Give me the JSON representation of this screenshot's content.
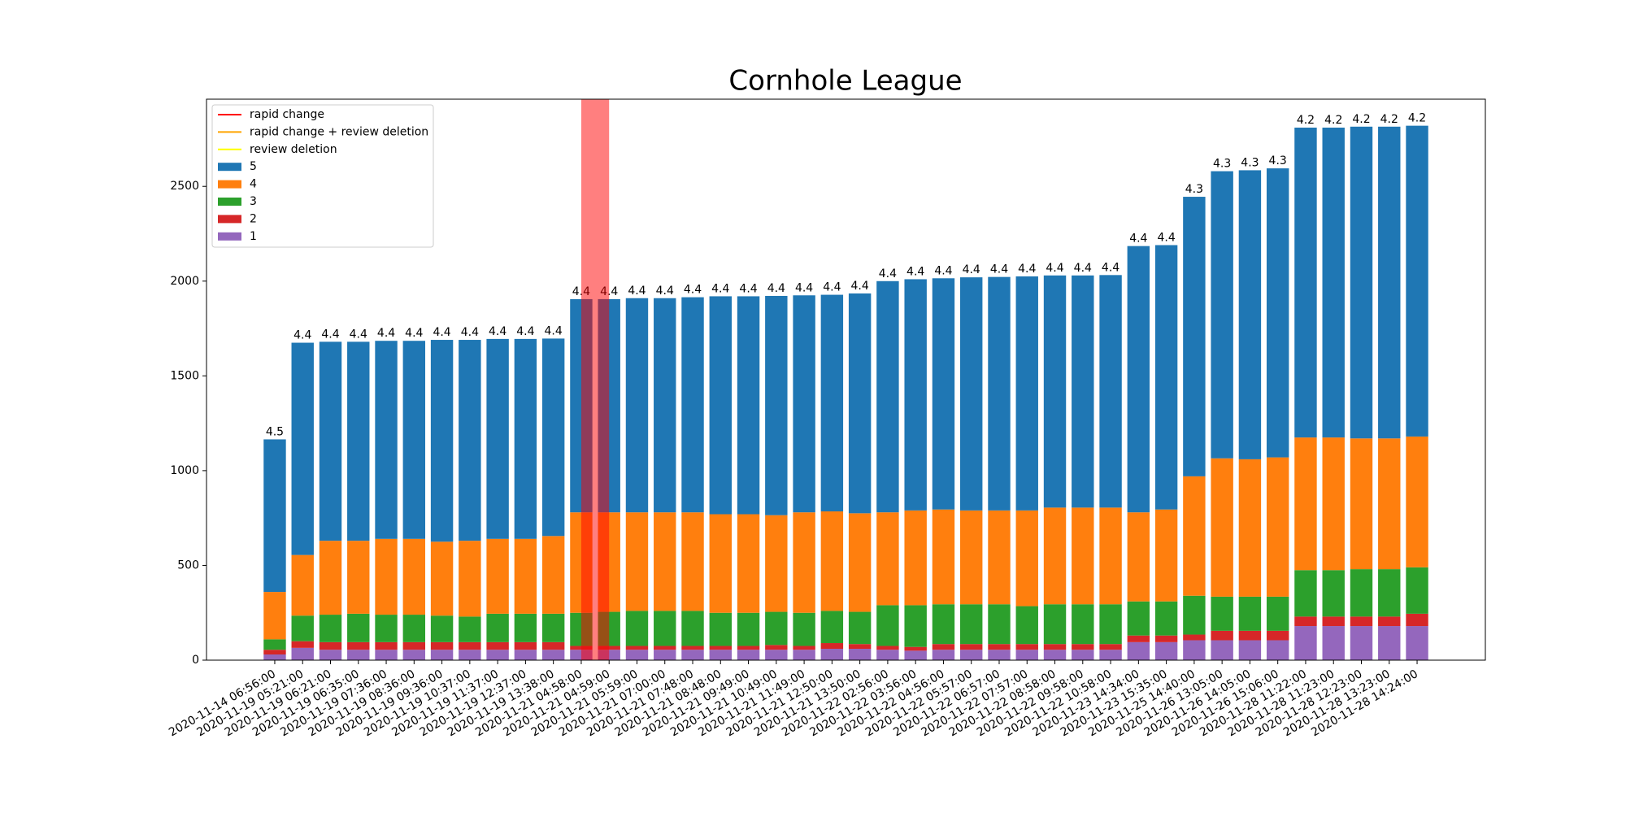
{
  "chart_data": {
    "type": "stacked-bar",
    "title": "Cornhole League",
    "categories": [
      "2020-11-14 06:56:00",
      "2020-11-19 05:21:00",
      "2020-11-19 06:21:00",
      "2020-11-19 06:35:00",
      "2020-11-19 07:36:00",
      "2020-11-19 08:36:00",
      "2020-11-19 09:36:00",
      "2020-11-19 10:37:00",
      "2020-11-19 11:37:00",
      "2020-11-19 12:37:00",
      "2020-11-19 13:38:00",
      "2020-11-21 04:58:00",
      "2020-11-21 04:59:00",
      "2020-11-21 05:59:00",
      "2020-11-21 07:00:00",
      "2020-11-21 07:48:00",
      "2020-11-21 08:48:00",
      "2020-11-21 09:49:00",
      "2020-11-21 10:49:00",
      "2020-11-21 11:49:00",
      "2020-11-21 12:50:00",
      "2020-11-21 13:50:00",
      "2020-11-22 02:56:00",
      "2020-11-22 03:56:00",
      "2020-11-22 04:56:00",
      "2020-11-22 05:57:00",
      "2020-11-22 06:57:00",
      "2020-11-22 07:57:00",
      "2020-11-22 08:58:00",
      "2020-11-22 09:58:00",
      "2020-11-22 10:58:00",
      "2020-11-23 14:34:00",
      "2020-11-23 15:35:00",
      "2020-11-25 14:40:00",
      "2020-11-26 13:05:00",
      "2020-11-26 14:05:00",
      "2020-11-26 15:06:00",
      "2020-11-28 11:22:00",
      "2020-11-28 11:23:00",
      "2020-11-28 12:23:00",
      "2020-11-28 13:23:00",
      "2020-11-28 14:24:00"
    ],
    "series": [
      {
        "name": "5",
        "color": "#1f77b4",
        "values": [
          805,
          1120,
          1050,
          1050,
          1045,
          1045,
          1065,
          1060,
          1055,
          1055,
          1042,
          1125,
          1125,
          1130,
          1130,
          1135,
          1150,
          1150,
          1157,
          1145,
          1143,
          1160,
          1220,
          1220,
          1220,
          1230,
          1232,
          1235,
          1225,
          1225,
          1227,
          1405,
          1395,
          1475,
          1515,
          1525,
          1525,
          1635,
          1635,
          1645,
          1645,
          1640
        ]
      },
      {
        "name": "4",
        "color": "#ff7f0e",
        "values": [
          250,
          320,
          390,
          385,
          400,
          400,
          390,
          400,
          395,
          395,
          410,
          530,
          525,
          520,
          520,
          520,
          520,
          520,
          510,
          530,
          525,
          520,
          490,
          500,
          500,
          495,
          495,
          505,
          510,
          510,
          510,
          470,
          485,
          630,
          730,
          725,
          735,
          700,
          700,
          690,
          690,
          690
        ]
      },
      {
        "name": "3",
        "color": "#2ca02c",
        "values": [
          55,
          135,
          145,
          150,
          145,
          145,
          140,
          135,
          150,
          150,
          150,
          175,
          180,
          185,
          185,
          185,
          175,
          175,
          175,
          175,
          170,
          170,
          215,
          220,
          210,
          210,
          210,
          200,
          210,
          210,
          210,
          180,
          180,
          205,
          180,
          180,
          180,
          245,
          245,
          250,
          250,
          245
        ]
      },
      {
        "name": "2",
        "color": "#d62728",
        "values": [
          25,
          35,
          40,
          40,
          40,
          40,
          40,
          40,
          40,
          40,
          40,
          20,
          20,
          20,
          20,
          20,
          20,
          20,
          25,
          20,
          30,
          25,
          20,
          20,
          30,
          30,
          30,
          30,
          30,
          30,
          30,
          35,
          35,
          30,
          50,
          50,
          50,
          50,
          50,
          50,
          50,
          65
        ]
      },
      {
        "name": "1",
        "color": "#9467bd",
        "values": [
          30,
          65,
          55,
          55,
          55,
          55,
          55,
          55,
          55,
          55,
          55,
          55,
          55,
          55,
          55,
          55,
          55,
          55,
          55,
          55,
          60,
          60,
          55,
          50,
          55,
          55,
          55,
          55,
          55,
          55,
          55,
          95,
          95,
          105,
          105,
          105,
          105,
          180,
          180,
          180,
          180,
          180
        ]
      }
    ],
    "bar_labels": [
      "4.5",
      "4.4",
      "4.4",
      "4.4",
      "4.4",
      "4.4",
      "4.4",
      "4.4",
      "4.4",
      "4.4",
      "4.4",
      "4.4",
      "4.4",
      "4.4",
      "4.4",
      "4.4",
      "4.4",
      "4.4",
      "4.4",
      "4.4",
      "4.4",
      "4.4",
      "4.4",
      "4.4",
      "4.4",
      "4.4",
      "4.4",
      "4.4",
      "4.4",
      "4.4",
      "4.4",
      "4.4",
      "4.4",
      "4.3",
      "4.3",
      "4.3",
      "4.3",
      "4.2",
      "4.2",
      "4.2",
      "4.2",
      "4.2"
    ],
    "legend_lines": [
      {
        "name": "rapid change",
        "color": "red"
      },
      {
        "name": "rapid change + review deletion",
        "color": "orange"
      },
      {
        "name": "review deletion",
        "color": "yellow"
      }
    ],
    "spans": [
      {
        "start": "2020-11-21 04:58:00",
        "end": "2020-11-21 04:59:00",
        "color": "red"
      }
    ],
    "legend": "upper left",
    "ylim": [
      0,
      2960
    ],
    "yticks": [
      0,
      500,
      1000,
      1500,
      2000,
      2500
    ]
  }
}
